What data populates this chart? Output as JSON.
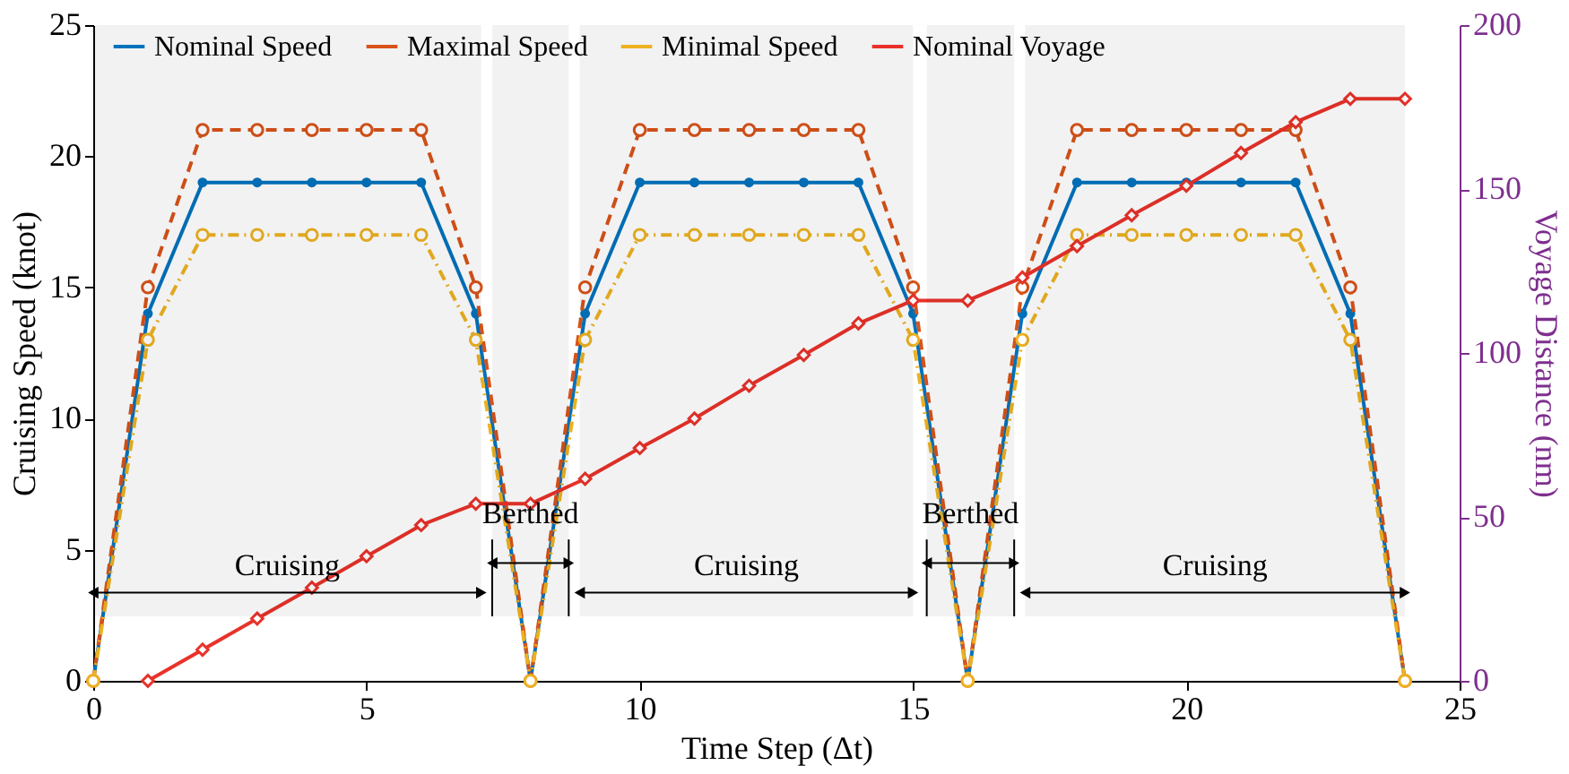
{
  "chart_data": {
    "type": "line",
    "xlabel": "Time Step (Δt)",
    "ylabel": "Cruising Speed (knot)",
    "y2label": "Voyage Distance (nm)",
    "x": [
      0,
      1,
      2,
      3,
      4,
      5,
      6,
      7,
      8,
      9,
      10,
      11,
      12,
      13,
      14,
      15,
      16,
      17,
      18,
      19,
      20,
      21,
      22,
      23,
      24
    ],
    "xlim": [
      0,
      25
    ],
    "xticks": [
      0,
      5,
      10,
      15,
      20,
      25
    ],
    "ylim": [
      0,
      25
    ],
    "yticks": [
      0,
      5,
      10,
      15,
      20,
      25
    ],
    "y2lim": [
      0,
      200
    ],
    "y2ticks": [
      0,
      50,
      100,
      150,
      200
    ],
    "legend": "top",
    "grid": false,
    "series": [
      {
        "name": "Nominal Speed",
        "color": "#0072bd",
        "marker": "circle",
        "line_style": "solid",
        "values": [
          0,
          14,
          19,
          19,
          19,
          19,
          19,
          14,
          0,
          14,
          19,
          19,
          19,
          19,
          19,
          14,
          0,
          14,
          19,
          19,
          19,
          19,
          19,
          14,
          0
        ]
      },
      {
        "name": "Maximal Speed",
        "color": "#d95319",
        "marker": "circle",
        "line_style": "dashed",
        "values": [
          0,
          15,
          21,
          21,
          21,
          21,
          21,
          15,
          0,
          15,
          21,
          21,
          21,
          21,
          21,
          15,
          0,
          15,
          21,
          21,
          21,
          21,
          21,
          15,
          0
        ]
      },
      {
        "name": "Minimal Speed",
        "color": "#edb120",
        "marker": "circle",
        "line_style": "dotted",
        "values": [
          0,
          13,
          17,
          17,
          17,
          17,
          17,
          13,
          0,
          13,
          17,
          17,
          17,
          17,
          17,
          13,
          0,
          13,
          17,
          17,
          17,
          17,
          17,
          13,
          0
        ]
      },
      {
        "name": "Nominal Voyage",
        "color": "#e8322a",
        "marker": "diamond",
        "line_style": "solid",
        "axis": "y2",
        "x": [
          1,
          2,
          3,
          4,
          5,
          6,
          7,
          8,
          9,
          10,
          11,
          12,
          13,
          14,
          15,
          16,
          17,
          18,
          19,
          20,
          21,
          22,
          23,
          24
        ],
        "values": [
          0,
          9.5,
          19,
          28.4,
          38,
          47.5,
          54,
          54,
          61.6,
          71,
          80,
          90,
          99.4,
          109,
          116,
          116,
          123,
          132.6,
          142,
          151,
          161,
          170.4,
          177.5,
          177.5
        ]
      }
    ],
    "bands": [
      {
        "axis": "x",
        "from": 0,
        "to": 7.1,
        "label": "Cruising",
        "color": "#000000"
      },
      {
        "axis": "x",
        "from": 7.3,
        "to": 8.7,
        "label": "Berthed",
        "color": "#000000"
      },
      {
        "axis": "x",
        "from": 8.9,
        "to": 15,
        "label": "Cruising",
        "color": "#000000"
      },
      {
        "axis": "x",
        "from": 15.25,
        "to": 16.85,
        "label": "Berthed",
        "color": "#000000"
      },
      {
        "axis": "x",
        "from": 17.05,
        "to": 24,
        "label": "Cruising",
        "color": "#000000"
      }
    ]
  }
}
